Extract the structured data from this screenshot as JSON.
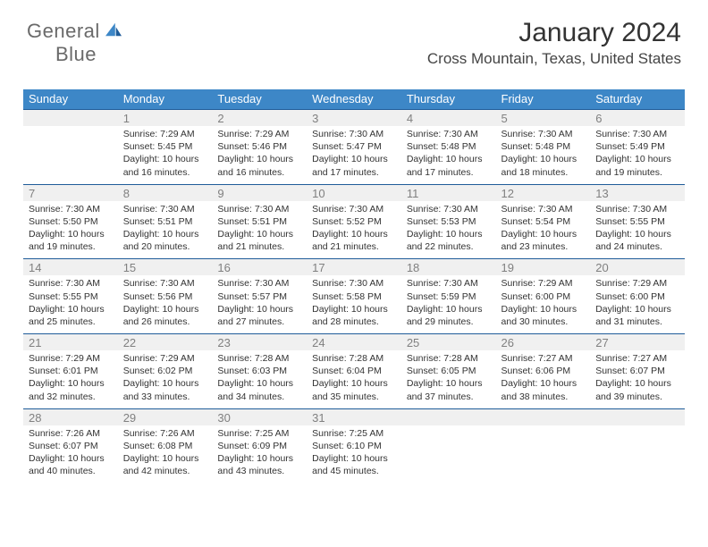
{
  "logo": {
    "line1": "General",
    "line2": "Blue"
  },
  "title": "January 2024",
  "location": "Cross Mountain, Texas, United States",
  "colors": {
    "header_blue": "#3d87c7",
    "divider_blue": "#1f5c99",
    "zebra": "#f0f0f0",
    "logo_gray": "#6a6a6a",
    "daynum_gray": "#808080",
    "text_dark": "#333333"
  },
  "daysOfWeek": [
    "Sunday",
    "Monday",
    "Tuesday",
    "Wednesday",
    "Thursday",
    "Friday",
    "Saturday"
  ],
  "startDayIndex": 1,
  "daysInMonth": 31,
  "entries": {
    "1": {
      "sunrise": "7:29 AM",
      "sunset": "5:45 PM",
      "daylight": "10 hours and 16 minutes."
    },
    "2": {
      "sunrise": "7:29 AM",
      "sunset": "5:46 PM",
      "daylight": "10 hours and 16 minutes."
    },
    "3": {
      "sunrise": "7:30 AM",
      "sunset": "5:47 PM",
      "daylight": "10 hours and 17 minutes."
    },
    "4": {
      "sunrise": "7:30 AM",
      "sunset": "5:48 PM",
      "daylight": "10 hours and 17 minutes."
    },
    "5": {
      "sunrise": "7:30 AM",
      "sunset": "5:48 PM",
      "daylight": "10 hours and 18 minutes."
    },
    "6": {
      "sunrise": "7:30 AM",
      "sunset": "5:49 PM",
      "daylight": "10 hours and 19 minutes."
    },
    "7": {
      "sunrise": "7:30 AM",
      "sunset": "5:50 PM",
      "daylight": "10 hours and 19 minutes."
    },
    "8": {
      "sunrise": "7:30 AM",
      "sunset": "5:51 PM",
      "daylight": "10 hours and 20 minutes."
    },
    "9": {
      "sunrise": "7:30 AM",
      "sunset": "5:51 PM",
      "daylight": "10 hours and 21 minutes."
    },
    "10": {
      "sunrise": "7:30 AM",
      "sunset": "5:52 PM",
      "daylight": "10 hours and 21 minutes."
    },
    "11": {
      "sunrise": "7:30 AM",
      "sunset": "5:53 PM",
      "daylight": "10 hours and 22 minutes."
    },
    "12": {
      "sunrise": "7:30 AM",
      "sunset": "5:54 PM",
      "daylight": "10 hours and 23 minutes."
    },
    "13": {
      "sunrise": "7:30 AM",
      "sunset": "5:55 PM",
      "daylight": "10 hours and 24 minutes."
    },
    "14": {
      "sunrise": "7:30 AM",
      "sunset": "5:55 PM",
      "daylight": "10 hours and 25 minutes."
    },
    "15": {
      "sunrise": "7:30 AM",
      "sunset": "5:56 PM",
      "daylight": "10 hours and 26 minutes."
    },
    "16": {
      "sunrise": "7:30 AM",
      "sunset": "5:57 PM",
      "daylight": "10 hours and 27 minutes."
    },
    "17": {
      "sunrise": "7:30 AM",
      "sunset": "5:58 PM",
      "daylight": "10 hours and 28 minutes."
    },
    "18": {
      "sunrise": "7:30 AM",
      "sunset": "5:59 PM",
      "daylight": "10 hours and 29 minutes."
    },
    "19": {
      "sunrise": "7:29 AM",
      "sunset": "6:00 PM",
      "daylight": "10 hours and 30 minutes."
    },
    "20": {
      "sunrise": "7:29 AM",
      "sunset": "6:00 PM",
      "daylight": "10 hours and 31 minutes."
    },
    "21": {
      "sunrise": "7:29 AM",
      "sunset": "6:01 PM",
      "daylight": "10 hours and 32 minutes."
    },
    "22": {
      "sunrise": "7:29 AM",
      "sunset": "6:02 PM",
      "daylight": "10 hours and 33 minutes."
    },
    "23": {
      "sunrise": "7:28 AM",
      "sunset": "6:03 PM",
      "daylight": "10 hours and 34 minutes."
    },
    "24": {
      "sunrise": "7:28 AM",
      "sunset": "6:04 PM",
      "daylight": "10 hours and 35 minutes."
    },
    "25": {
      "sunrise": "7:28 AM",
      "sunset": "6:05 PM",
      "daylight": "10 hours and 37 minutes."
    },
    "26": {
      "sunrise": "7:27 AM",
      "sunset": "6:06 PM",
      "daylight": "10 hours and 38 minutes."
    },
    "27": {
      "sunrise": "7:27 AM",
      "sunset": "6:07 PM",
      "daylight": "10 hours and 39 minutes."
    },
    "28": {
      "sunrise": "7:26 AM",
      "sunset": "6:07 PM",
      "daylight": "10 hours and 40 minutes."
    },
    "29": {
      "sunrise": "7:26 AM",
      "sunset": "6:08 PM",
      "daylight": "10 hours and 42 minutes."
    },
    "30": {
      "sunrise": "7:25 AM",
      "sunset": "6:09 PM",
      "daylight": "10 hours and 43 minutes."
    },
    "31": {
      "sunrise": "7:25 AM",
      "sunset": "6:10 PM",
      "daylight": "10 hours and 45 minutes."
    }
  },
  "labels": {
    "sunrise_prefix": "Sunrise: ",
    "sunset_prefix": "Sunset: ",
    "daylight_prefix": "Daylight: "
  }
}
